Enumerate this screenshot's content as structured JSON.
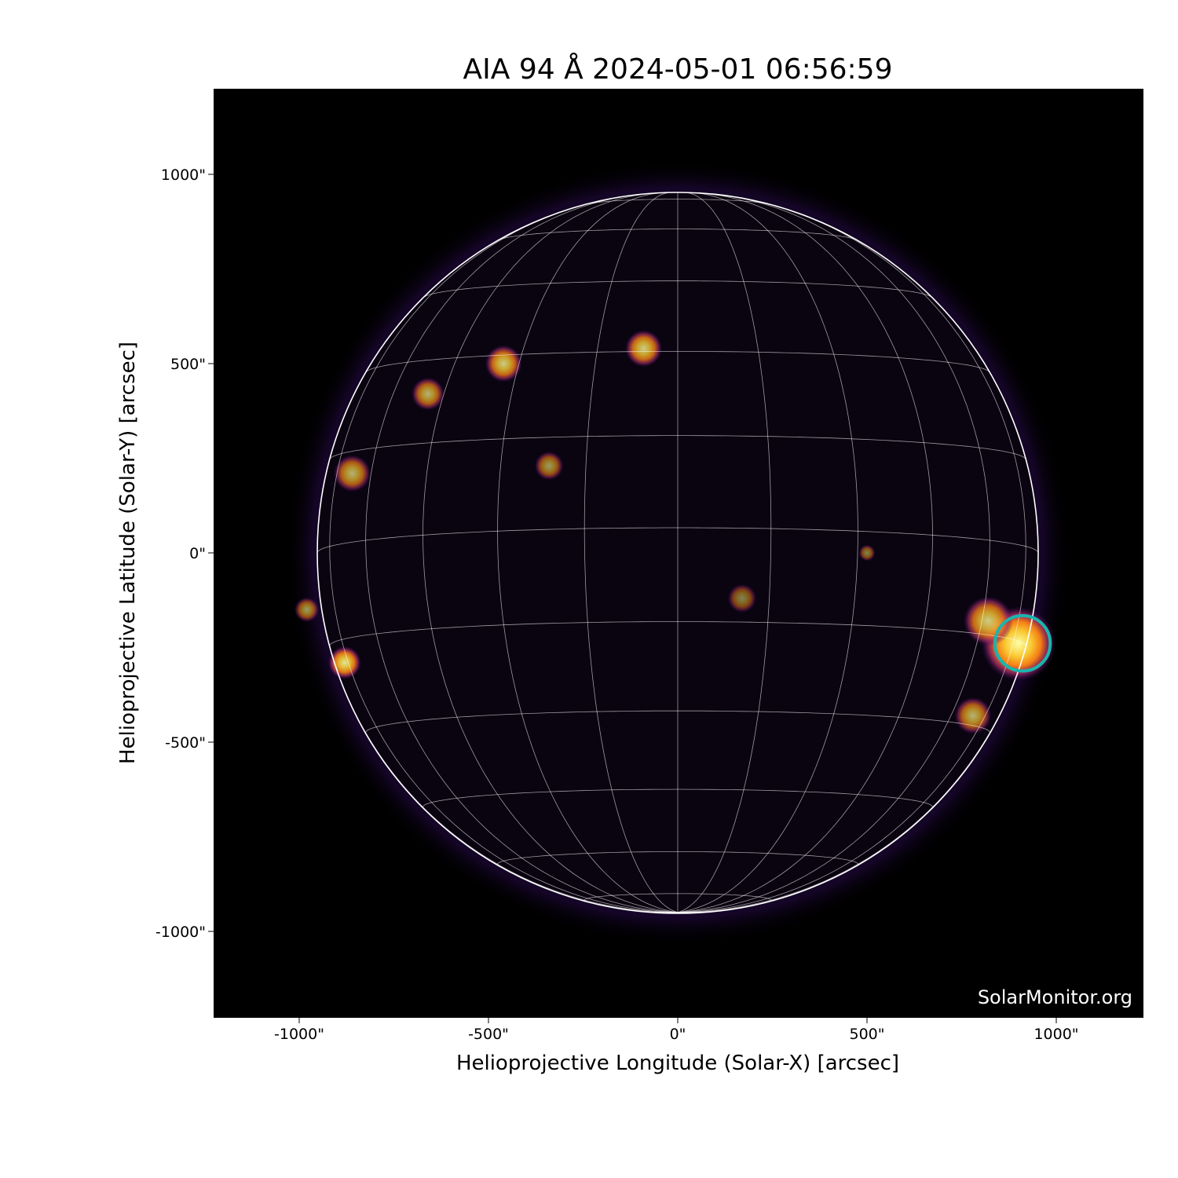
{
  "title": "AIA 94 Å 2024-05-01 06:56:59",
  "watermark": "SolarMonitor.org",
  "chart_data": {
    "type": "heatmap",
    "title": "AIA 94 Å 2024-05-01 06:56:59",
    "xlabel": "Helioprojective Longitude (Solar-X) [arcsec]",
    "ylabel": "Helioprojective Latitude (Solar-Y) [arcsec]",
    "xlim": [
      -1230,
      1230
    ],
    "ylim": [
      -1230,
      1230
    ],
    "x_ticks": [
      {
        "value": -1000,
        "label": "-1000\""
      },
      {
        "value": -500,
        "label": "-500\""
      },
      {
        "value": 0,
        "label": "0\""
      },
      {
        "value": 500,
        "label": "500\""
      },
      {
        "value": 1000,
        "label": "1000\""
      }
    ],
    "y_ticks": [
      {
        "value": 1000,
        "label": "1000\""
      },
      {
        "value": 500,
        "label": "500\""
      },
      {
        "value": 0,
        "label": "0\""
      },
      {
        "value": -500,
        "label": "-500\""
      },
      {
        "value": -1000,
        "label": "-1000\""
      }
    ],
    "solar_radius_arcsec": 952,
    "b0_deg": -4,
    "grid": {
      "on": true,
      "lat_step_deg": 15,
      "lon_step_deg": 15,
      "color": "#ffffff"
    },
    "colormap": "inferno",
    "highlight_circle": {
      "x": 911,
      "y": -239,
      "radius": 73,
      "color": "#1bb5b0"
    },
    "bright_regions": [
      {
        "x": 900,
        "y": -240,
        "r": 90,
        "intensity": 1.0
      },
      {
        "x": 820,
        "y": -180,
        "r": 60,
        "intensity": 0.8
      },
      {
        "x": 780,
        "y": -430,
        "r": 45,
        "intensity": 0.7
      },
      {
        "x": -880,
        "y": -290,
        "r": 40,
        "intensity": 0.9
      },
      {
        "x": -90,
        "y": 540,
        "r": 45,
        "intensity": 0.8
      },
      {
        "x": -460,
        "y": 500,
        "r": 45,
        "intensity": 0.8
      },
      {
        "x": -660,
        "y": 420,
        "r": 40,
        "intensity": 0.7
      },
      {
        "x": -860,
        "y": 210,
        "r": 45,
        "intensity": 0.7
      },
      {
        "x": -340,
        "y": 230,
        "r": 35,
        "intensity": 0.6
      },
      {
        "x": -980,
        "y": -150,
        "r": 30,
        "intensity": 0.6
      },
      {
        "x": 500,
        "y": 0,
        "r": 20,
        "intensity": 0.5
      },
      {
        "x": 170,
        "y": -120,
        "r": 35,
        "intensity": 0.5
      }
    ]
  }
}
